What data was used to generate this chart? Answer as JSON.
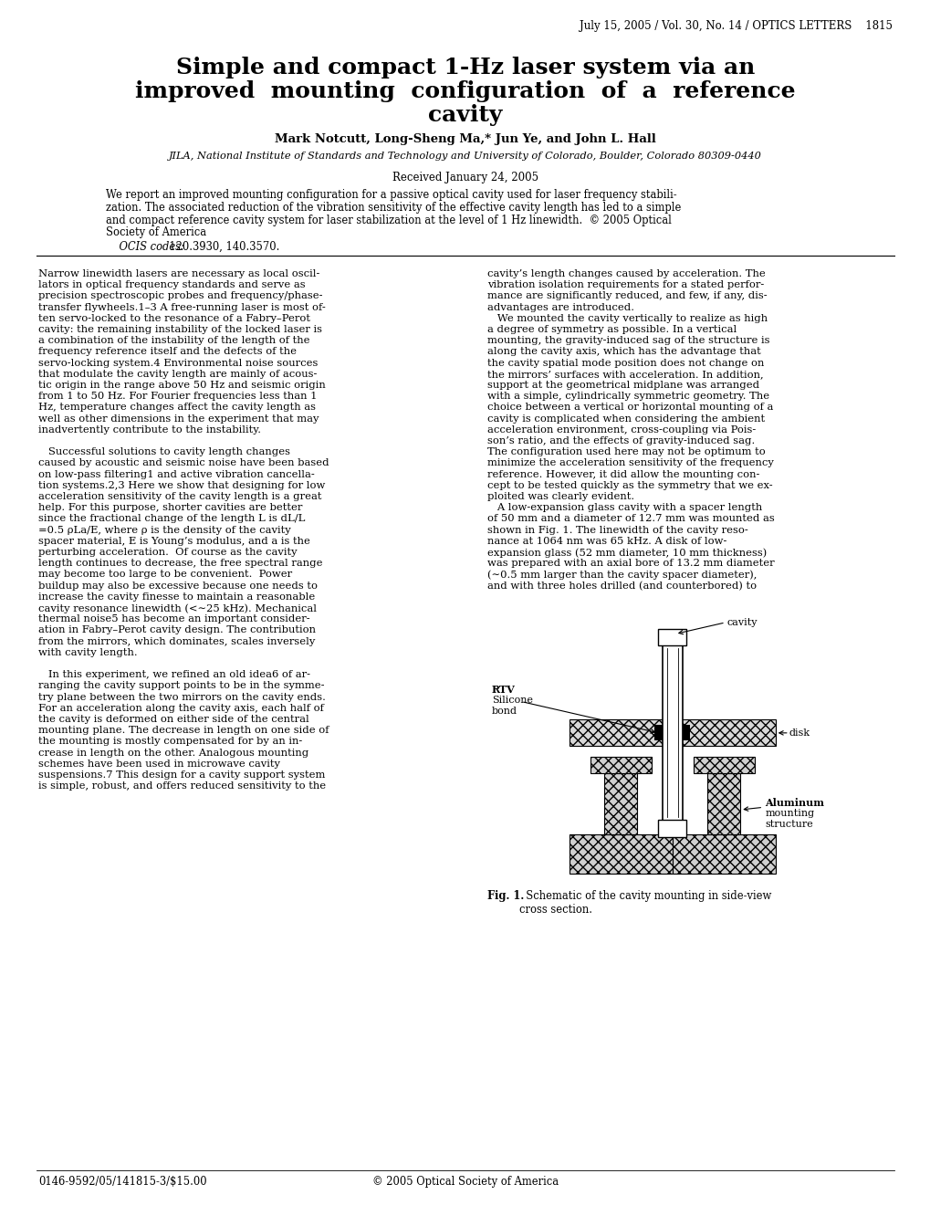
{
  "header_text": "July 15, 2005 / Vol. 30, No. 14 / OPTICS LETTERS    1815",
  "title_line1": "Simple and compact 1-Hz laser system via an",
  "title_line2": "improved  mounting  configuration  of  a  reference",
  "title_line3": "cavity",
  "authors": "Mark Notcutt, Long-Sheng Ma,* Jun Ye, and John L. Hall",
  "affiliation": "JILA, National Institute of Standards and Technology and University of Colorado, Boulder, Colorado 80309-0440",
  "received": "Received January 24, 2005",
  "abstract_lines": [
    "We report an improved mounting configuration for a passive optical cavity used for laser frequency stabili-",
    "zation. The associated reduction of the vibration sensitivity of the effective cavity length has led to a simple",
    "and compact reference cavity system for laser stabilization at the level of 1 Hz linewidth.  © 2005 Optical",
    "Society of America"
  ],
  "ocis_label": "    OCIS codes:",
  "ocis_rest": "  120.3930, 140.3570.",
  "col1_lines": [
    "Narrow linewidth lasers are necessary as local oscil-",
    "lators in optical frequency standards and serve as",
    "precision spectroscopic probes and frequency/phase-",
    "transfer flywheels.1–3 A free-running laser is most of-",
    "ten servo-locked to the resonance of a Fabry–Perot",
    "cavity: the remaining instability of the locked laser is",
    "a combination of the instability of the length of the",
    "frequency reference itself and the defects of the",
    "servo-locking system.4 Environmental noise sources",
    "that modulate the cavity length are mainly of acous-",
    "tic origin in the range above 50 Hz and seismic origin",
    "from 1 to 50 Hz. For Fourier frequencies less than 1",
    "Hz, temperature changes affect the cavity length as",
    "well as other dimensions in the experiment that may",
    "inadvertently contribute to the instability.",
    "",
    "   Successful solutions to cavity length changes",
    "caused by acoustic and seismic noise have been based",
    "on low-pass filtering1 and active vibration cancella-",
    "tion systems.2,3 Here we show that designing for low",
    "acceleration sensitivity of the cavity length is a great",
    "help. For this purpose, shorter cavities are better",
    "since the fractional change of the length L is dL/L",
    "=0.5 ρLa/E, where ρ is the density of the cavity",
    "spacer material, E is Young’s modulus, and a is the",
    "perturbing acceleration.  Of course as the cavity",
    "length continues to decrease, the free spectral range",
    "may become too large to be convenient.  Power",
    "buildup may also be excessive because one needs to",
    "increase the cavity finesse to maintain a reasonable",
    "cavity resonance linewidth (<∼25 kHz). Mechanical",
    "thermal noise5 has become an important consider-",
    "ation in Fabry–Perot cavity design. The contribution",
    "from the mirrors, which dominates, scales inversely",
    "with cavity length.",
    "",
    "   In this experiment, we refined an old idea6 of ar-",
    "ranging the cavity support points to be in the symme-",
    "try plane between the two mirrors on the cavity ends.",
    "For an acceleration along the cavity axis, each half of",
    "the cavity is deformed on either side of the central",
    "mounting plane. The decrease in length on one side of",
    "the mounting is mostly compensated for by an in-",
    "crease in length on the other. Analogous mounting",
    "schemes have been used in microwave cavity",
    "suspensions.7 This design for a cavity support system",
    "is simple, robust, and offers reduced sensitivity to the"
  ],
  "col2_lines": [
    "cavity’s length changes caused by acceleration. The",
    "vibration isolation requirements for a stated perfor-",
    "mance are significantly reduced, and few, if any, dis-",
    "advantages are introduced.",
    "   We mounted the cavity vertically to realize as high",
    "a degree of symmetry as possible. In a vertical",
    "mounting, the gravity-induced sag of the structure is",
    "along the cavity axis, which has the advantage that",
    "the cavity spatial mode position does not change on",
    "the mirrors’ surfaces with acceleration. In addition,",
    "support at the geometrical midplane was arranged",
    "with a simple, cylindrically symmetric geometry. The",
    "choice between a vertical or horizontal mounting of a",
    "cavity is complicated when considering the ambient",
    "acceleration environment, cross-coupling via Pois-",
    "son’s ratio, and the effects of gravity-induced sag.",
    "The configuration used here may not be optimum to",
    "minimize the acceleration sensitivity of the frequency",
    "reference. However, it did allow the mounting con-",
    "cept to be tested quickly as the symmetry that we ex-",
    "ploited was clearly evident.",
    "   A low-expansion glass cavity with a spacer length",
    "of 50 mm and a diameter of 12.7 mm was mounted as",
    "shown in Fig. 1. The linewidth of the cavity reso-",
    "nance at 1064 nm was 65 kHz. A disk of low-",
    "expansion glass (52 mm diameter, 10 mm thickness)",
    "was prepared with an axial bore of 13.2 mm diameter",
    "(∼0.5 mm larger than the cavity spacer diameter),",
    "and with three holes drilled (and counterbored) to"
  ],
  "fig_caption_bold": "Fig. 1.",
  "fig_caption_rest": "  Schematic of the cavity mounting in side-view\ncross section.",
  "footer_left": "0146-9592/05/141815-3/$15.00",
  "footer_right": "© 2005 Optical Society of America"
}
